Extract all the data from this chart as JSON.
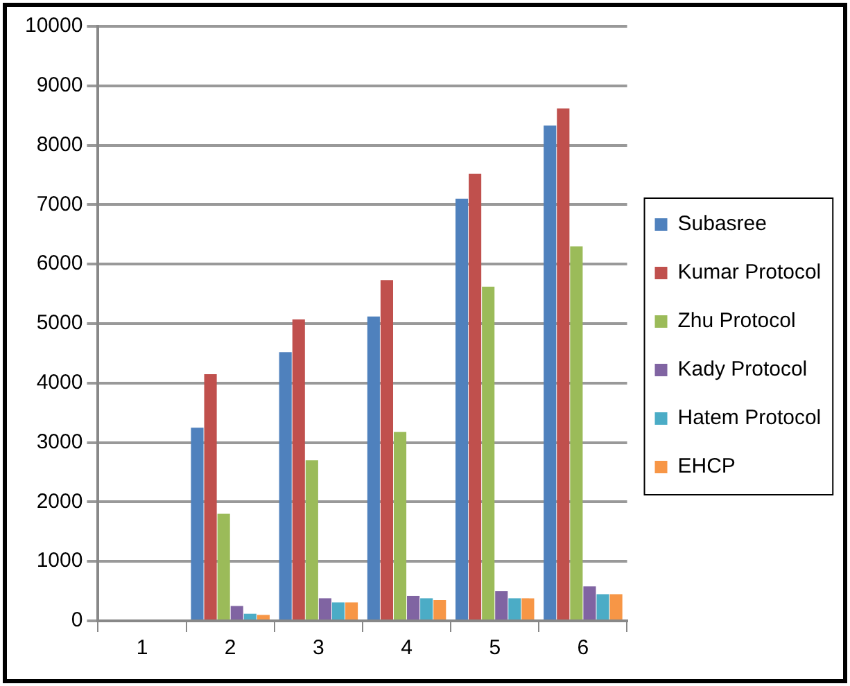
{
  "chart_data": {
    "type": "bar",
    "categories": [
      "1",
      "2",
      "3",
      "4",
      "5",
      "6"
    ],
    "series": [
      {
        "name": "Subasree",
        "color": "#4f81bd",
        "values": [
          0,
          3250,
          4520,
          5120,
          7100,
          8330
        ]
      },
      {
        "name": "Kumar Protocol",
        "color": "#c0504d",
        "values": [
          0,
          4150,
          5070,
          5730,
          7520,
          8620
        ]
      },
      {
        "name": "Zhu Protocol",
        "color": "#9bbb59",
        "values": [
          0,
          1800,
          2700,
          3180,
          5620,
          6300
        ]
      },
      {
        "name": "Kady Protocol",
        "color": "#8064a2",
        "values": [
          0,
          250,
          380,
          420,
          500,
          580
        ]
      },
      {
        "name": "Hatem Protocol",
        "color": "#4bacc6",
        "values": [
          0,
          120,
          310,
          380,
          380,
          450
        ]
      },
      {
        "name": "EHCP",
        "color": "#f79646",
        "values": [
          0,
          100,
          310,
          350,
          380,
          450
        ]
      }
    ],
    "ylim": [
      0,
      10000
    ],
    "yticks": [
      0,
      1000,
      2000,
      3000,
      4000,
      5000,
      6000,
      7000,
      8000,
      9000,
      10000
    ],
    "grid": "y",
    "legend": "right"
  }
}
